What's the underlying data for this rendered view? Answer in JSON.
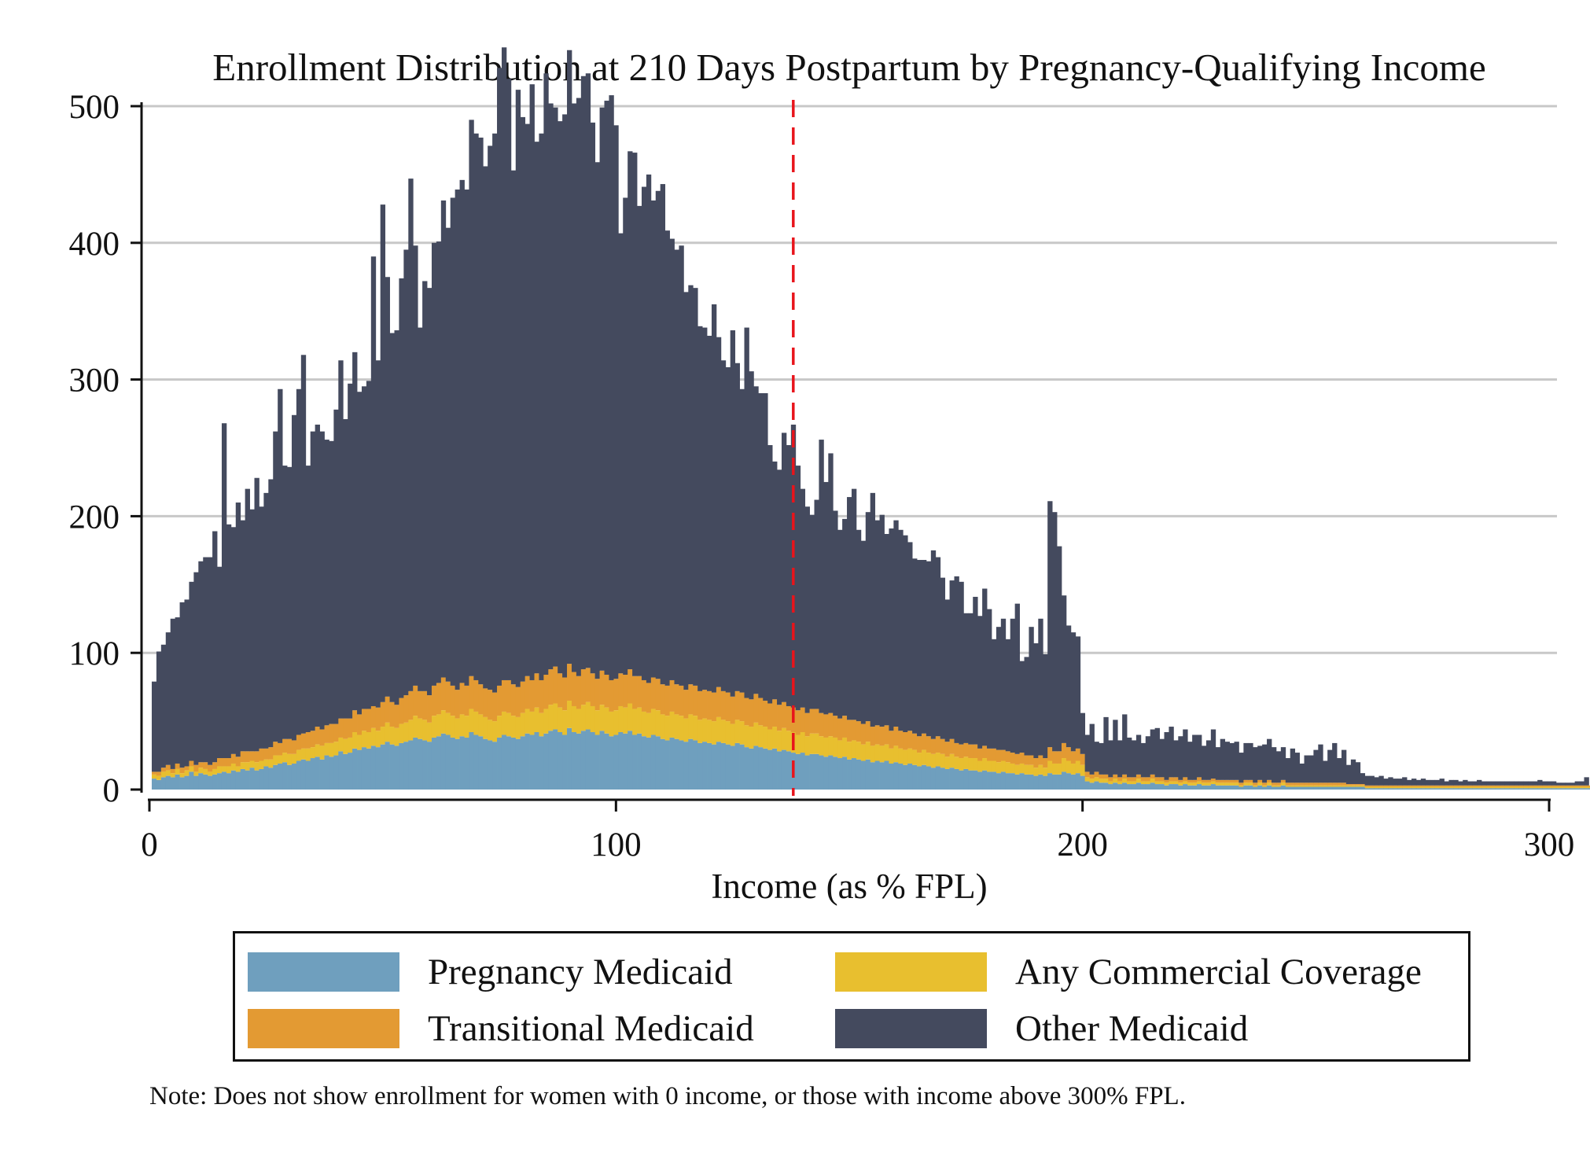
{
  "chart_data": {
    "type": "bar",
    "stacked": true,
    "title": "Enrollment Distribution at 210 Days Postpartum by Pregnancy-Qualifying Income",
    "xlabel": "Income (as % FPL)",
    "ylabel": "",
    "xlim": [
      0,
      300
    ],
    "ylim": [
      0,
      500
    ],
    "x_ticks": [
      "0",
      "100",
      "200",
      "300"
    ],
    "y_ticks": [
      "0",
      "100",
      "200",
      "300",
      "400",
      "500"
    ],
    "grid": true,
    "reference_line": {
      "x": 138,
      "style": "dashed",
      "color": "#e8141b"
    },
    "legend_position": "bottom",
    "colors": {
      "pregnancy_medicaid": "#6f9fbe",
      "transitional_medicaid": "#e39a33",
      "any_commercial": "#e8bf2f",
      "other_medicaid": "#444a5e",
      "gridline": "#c8c8c8",
      "reference_line": "#e8141b"
    },
    "bin_width": 1,
    "bin_start": 1,
    "series": [
      {
        "name": "Pregnancy Medicaid",
        "key": "pregnancy_medicaid",
        "values": [
          8,
          7,
          9,
          10,
          9,
          11,
          9,
          10,
          13,
          10,
          12,
          11,
          10,
          11,
          12,
          13,
          12,
          14,
          13,
          15,
          14,
          16,
          14,
          15,
          17,
          16,
          18,
          19,
          20,
          18,
          19,
          21,
          22,
          21,
          23,
          24,
          22,
          25,
          24,
          25,
          28,
          26,
          27,
          30,
          29,
          31,
          30,
          32,
          31,
          33,
          35,
          33,
          32,
          34,
          35,
          36,
          38,
          37,
          36,
          35,
          38,
          39,
          41,
          40,
          38,
          37,
          39,
          38,
          42,
          40,
          39,
          37,
          36,
          35,
          38,
          40,
          39,
          38,
          37,
          39,
          41,
          40,
          42,
          39,
          41,
          43,
          44,
          42,
          40,
          45,
          42,
          41,
          43,
          44,
          42,
          40,
          43,
          41,
          39,
          40,
          42,
          41,
          43,
          40,
          41,
          39,
          38,
          40,
          39,
          37,
          36,
          38,
          37,
          36,
          35,
          37,
          36,
          34,
          35,
          34,
          33,
          35,
          34,
          33,
          32,
          34,
          33,
          31,
          30,
          32,
          31,
          30,
          29,
          30,
          28,
          29,
          28,
          27,
          26,
          27,
          25,
          26,
          26,
          25,
          24,
          25,
          24,
          23,
          24,
          22,
          23,
          22,
          21,
          22,
          20,
          21,
          20,
          21,
          19,
          20,
          19,
          18,
          19,
          18,
          17,
          18,
          17,
          16,
          17,
          16,
          15,
          16,
          15,
          14,
          15,
          14,
          14,
          13,
          14,
          13,
          13,
          12,
          13,
          12,
          12,
          11,
          12,
          11,
          11,
          10,
          11,
          10,
          12,
          11,
          11,
          13,
          12,
          11,
          12,
          10,
          6,
          5,
          6,
          5,
          5,
          4,
          5,
          4,
          5,
          4,
          4,
          5,
          4,
          4,
          5,
          4,
          4,
          3,
          4,
          4,
          3,
          4,
          3,
          3,
          4,
          3,
          3,
          4,
          3,
          3,
          3,
          3,
          3,
          2,
          3,
          3,
          2,
          3,
          2,
          3,
          2,
          2,
          3,
          2,
          2,
          2,
          2,
          2,
          2,
          2,
          2,
          2,
          2,
          2,
          2,
          2,
          2,
          2,
          2,
          2,
          1,
          1,
          1,
          1,
          1,
          1,
          1,
          1,
          1,
          1,
          1,
          1,
          1,
          1,
          1,
          1,
          1,
          1,
          1,
          1,
          1,
          1,
          1,
          1,
          1,
          1,
          1,
          1,
          1,
          1,
          1,
          1,
          1,
          1,
          1,
          1,
          1,
          1,
          1,
          1,
          1,
          1,
          1,
          1,
          1,
          1,
          1,
          1,
          1,
          1
        ]
      },
      {
        "name": "Any Commercial Coverage",
        "key": "any_commercial",
        "values": [
          3,
          3,
          4,
          4,
          3,
          4,
          3,
          4,
          4,
          3,
          4,
          4,
          3,
          4,
          5,
          4,
          5,
          5,
          4,
          5,
          6,
          5,
          6,
          6,
          5,
          6,
          7,
          6,
          7,
          8,
          7,
          8,
          8,
          9,
          8,
          9,
          10,
          9,
          10,
          10,
          10,
          11,
          11,
          12,
          11,
          12,
          12,
          13,
          12,
          13,
          14,
          13,
          13,
          14,
          14,
          15,
          16,
          15,
          15,
          14,
          16,
          16,
          17,
          16,
          16,
          15,
          16,
          16,
          17,
          17,
          16,
          16,
          15,
          15,
          16,
          17,
          17,
          16,
          16,
          17,
          18,
          17,
          18,
          17,
          18,
          19,
          19,
          18,
          18,
          20,
          19,
          18,
          19,
          20,
          19,
          18,
          19,
          19,
          18,
          18,
          19,
          19,
          20,
          19,
          19,
          18,
          18,
          19,
          19,
          18,
          18,
          19,
          18,
          18,
          17,
          18,
          18,
          17,
          17,
          17,
          17,
          18,
          17,
          17,
          16,
          17,
          17,
          16,
          16,
          17,
          16,
          16,
          15,
          16,
          15,
          16,
          15,
          15,
          14,
          15,
          14,
          15,
          15,
          14,
          14,
          14,
          14,
          13,
          14,
          13,
          13,
          13,
          12,
          13,
          12,
          12,
          12,
          12,
          11,
          12,
          11,
          11,
          11,
          11,
          10,
          11,
          10,
          10,
          10,
          10,
          9,
          10,
          9,
          9,
          9,
          9,
          9,
          8,
          9,
          8,
          8,
          8,
          8,
          8,
          7,
          7,
          7,
          7,
          7,
          6,
          7,
          6,
          9,
          8,
          8,
          10,
          9,
          8,
          9,
          8,
          3,
          3,
          3,
          3,
          3,
          2,
          3,
          2,
          3,
          2,
          2,
          3,
          2,
          2,
          3,
          2,
          2,
          2,
          2,
          2,
          2,
          2,
          2,
          2,
          2,
          2,
          2,
          2,
          2,
          2,
          2,
          2,
          2,
          1,
          2,
          2,
          1,
          2,
          1,
          2,
          1,
          1,
          2,
          1,
          1,
          1,
          1,
          1,
          1,
          1,
          1,
          1,
          1,
          1,
          1,
          1,
          1,
          1,
          1,
          1,
          1,
          1,
          1,
          1,
          1,
          1,
          1,
          1,
          1,
          1,
          1,
          1,
          1,
          1,
          1,
          1,
          1,
          1,
          1,
          1,
          1,
          1,
          1,
          1,
          1,
          1,
          1,
          1,
          1,
          1,
          1,
          1,
          1,
          1,
          1,
          1,
          1,
          1,
          1,
          1,
          1,
          1,
          1,
          1,
          1,
          1,
          1,
          1,
          1,
          1
        ]
      },
      {
        "name": "Transitional Medicaid",
        "key": "transitional_medicaid",
        "values": [
          2,
          3,
          3,
          4,
          3,
          4,
          4,
          3,
          4,
          5,
          4,
          5,
          5,
          5,
          6,
          6,
          6,
          7,
          7,
          8,
          8,
          7,
          8,
          9,
          8,
          9,
          10,
          9,
          10,
          11,
          10,
          11,
          11,
          12,
          12,
          13,
          12,
          13,
          14,
          13,
          14,
          15,
          14,
          16,
          15,
          16,
          17,
          16,
          17,
          18,
          19,
          18,
          17,
          19,
          20,
          21,
          22,
          20,
          21,
          20,
          22,
          23,
          24,
          23,
          22,
          21,
          23,
          22,
          24,
          23,
          22,
          21,
          22,
          21,
          22,
          23,
          24,
          23,
          22,
          23,
          24,
          23,
          25,
          24,
          25,
          26,
          27,
          25,
          24,
          27,
          25,
          24,
          26,
          25,
          24,
          23,
          25,
          24,
          23,
          23,
          24,
          24,
          25,
          24,
          23,
          23,
          22,
          23,
          23,
          22,
          22,
          23,
          22,
          22,
          21,
          22,
          22,
          21,
          21,
          21,
          21,
          22,
          21,
          21,
          20,
          21,
          21,
          20,
          20,
          21,
          20,
          19,
          19,
          20,
          19,
          19,
          18,
          18,
          18,
          18,
          17,
          18,
          18,
          17,
          17,
          17,
          16,
          16,
          16,
          16,
          15,
          15,
          15,
          15,
          14,
          14,
          14,
          14,
          13,
          14,
          13,
          13,
          13,
          12,
          12,
          12,
          12,
          11,
          12,
          11,
          11,
          11,
          10,
          10,
          10,
          10,
          10,
          9,
          9,
          9,
          9,
          9,
          8,
          8,
          8,
          8,
          8,
          7,
          7,
          7,
          7,
          7,
          10,
          9,
          9,
          11,
          10,
          9,
          9,
          8,
          4,
          3,
          4,
          3,
          3,
          3,
          3,
          3,
          3,
          3,
          3,
          3,
          3,
          3,
          3,
          3,
          3,
          2,
          3,
          3,
          2,
          3,
          2,
          2,
          3,
          2,
          2,
          2,
          2,
          2,
          2,
          2,
          2,
          2,
          2,
          2,
          2,
          2,
          2,
          2,
          2,
          2,
          2,
          2,
          2,
          2,
          2,
          2,
          2,
          2,
          2,
          2,
          2,
          2,
          2,
          2,
          1,
          1,
          1,
          1,
          1,
          1,
          1,
          1,
          1,
          1,
          1,
          1,
          1,
          1,
          1,
          1,
          1,
          1,
          1,
          1,
          1,
          1,
          1,
          1,
          1,
          1,
          1,
          1,
          1,
          1,
          1,
          1,
          1,
          1,
          1,
          1,
          1,
          1,
          1,
          1,
          1,
          1,
          1,
          1,
          1,
          1,
          1,
          1,
          1,
          1,
          1,
          1,
          1,
          1,
          1,
          1,
          1
        ]
      },
      {
        "name": "Other Medicaid",
        "key": "other_medicaid",
        "values": [
          66,
          88,
          90,
          97,
          110,
          107,
          121,
          122,
          131,
          141,
          147,
          150,
          152,
          169,
          140,
          245,
          171,
          166,
          186,
          169,
          192,
          177,
          200,
          177,
          187,
          196,
          227,
          259,
          200,
          199,
          238,
          253,
          277,
          195,
          219,
          221,
          218,
          209,
          207,
          230,
          262,
          219,
          245,
          262,
          236,
          236,
          240,
          329,
          254,
          364,
          307,
          270,
          274,
          307,
          326,
          375,
          322,
          266,
          300,
          298,
          324,
          323,
          349,
          332,
          357,
          366,
          368,
          363,
          407,
          400,
          400,
          382,
          398,
          409,
          452,
          463,
          440,
          376,
          437,
          413,
          404,
          436,
          389,
          400,
          440,
          414,
          409,
          404,
          412,
          449,
          416,
          423,
          434,
          435,
          403,
          378,
          412,
          420,
          428,
          405,
          322,
          349,
          379,
          383,
          344,
          361,
          372,
          349,
          357,
          366,
          333,
          323,
          318,
          322,
          291,
          292,
          291,
          267,
          265,
          260,
          284,
          256,
          242,
          238,
          268,
          240,
          222,
          271,
          240,
          225,
          223,
          225,
          189,
          174,
          172,
          197,
          191,
          207,
          179,
          160,
          151,
          142,
          153,
          200,
          170,
          190,
          150,
          138,
          144,
          163,
          169,
          140,
          134,
          153,
          171,
          150,
          155,
          140,
          148,
          151,
          147,
          144,
          138,
          128,
          129,
          127,
          128,
          138,
          131,
          118,
          104,
          116,
          122,
          119,
          95,
          96,
          108,
          97,
          115,
          102,
          80,
          90,
          96,
          82,
          98,
          110,
          67,
          72,
          94,
          84,
          100,
          76,
          180,
          175,
          150,
          108,
          89,
          87,
          82,
          30,
          27,
          37,
          22,
          23,
          42,
          27,
          40,
          27,
          44,
          29,
          27,
          29,
          25,
          30,
          33,
          36,
          28,
          35,
          37,
          27,
          32,
          35,
          28,
          33,
          31,
          25,
          29,
          36,
          24,
          30,
          28,
          27,
          28,
          22,
          27,
          27,
          26,
          25,
          28,
          30,
          26,
          23,
          24,
          18,
          25,
          22,
          14,
          20,
          20,
          24,
          28,
          16,
          24,
          29,
          18,
          24,
          14,
          18,
          16,
          8,
          7,
          7,
          6,
          7,
          5,
          6,
          5,
          5,
          6,
          4,
          5,
          4,
          5,
          4,
          4,
          4,
          5,
          3,
          4,
          4,
          3,
          4,
          3,
          3,
          4,
          3,
          3,
          3,
          3,
          3,
          3,
          3,
          3,
          3,
          3,
          3,
          3,
          4,
          3,
          3,
          3,
          2,
          2,
          2,
          2,
          3,
          3,
          6
        ]
      }
    ]
  },
  "legend": {
    "items": [
      {
        "label": "Pregnancy Medicaid",
        "color": "#6f9fbe"
      },
      {
        "label": "Any Commercial Coverage",
        "color": "#e8bf2f"
      },
      {
        "label": "Transitional Medicaid",
        "color": "#e39a33"
      },
      {
        "label": "Other Medicaid",
        "color": "#444a5e"
      }
    ]
  },
  "note": "Note: Does not show enrollment for women with 0 income, or those with income above 300% FPL."
}
